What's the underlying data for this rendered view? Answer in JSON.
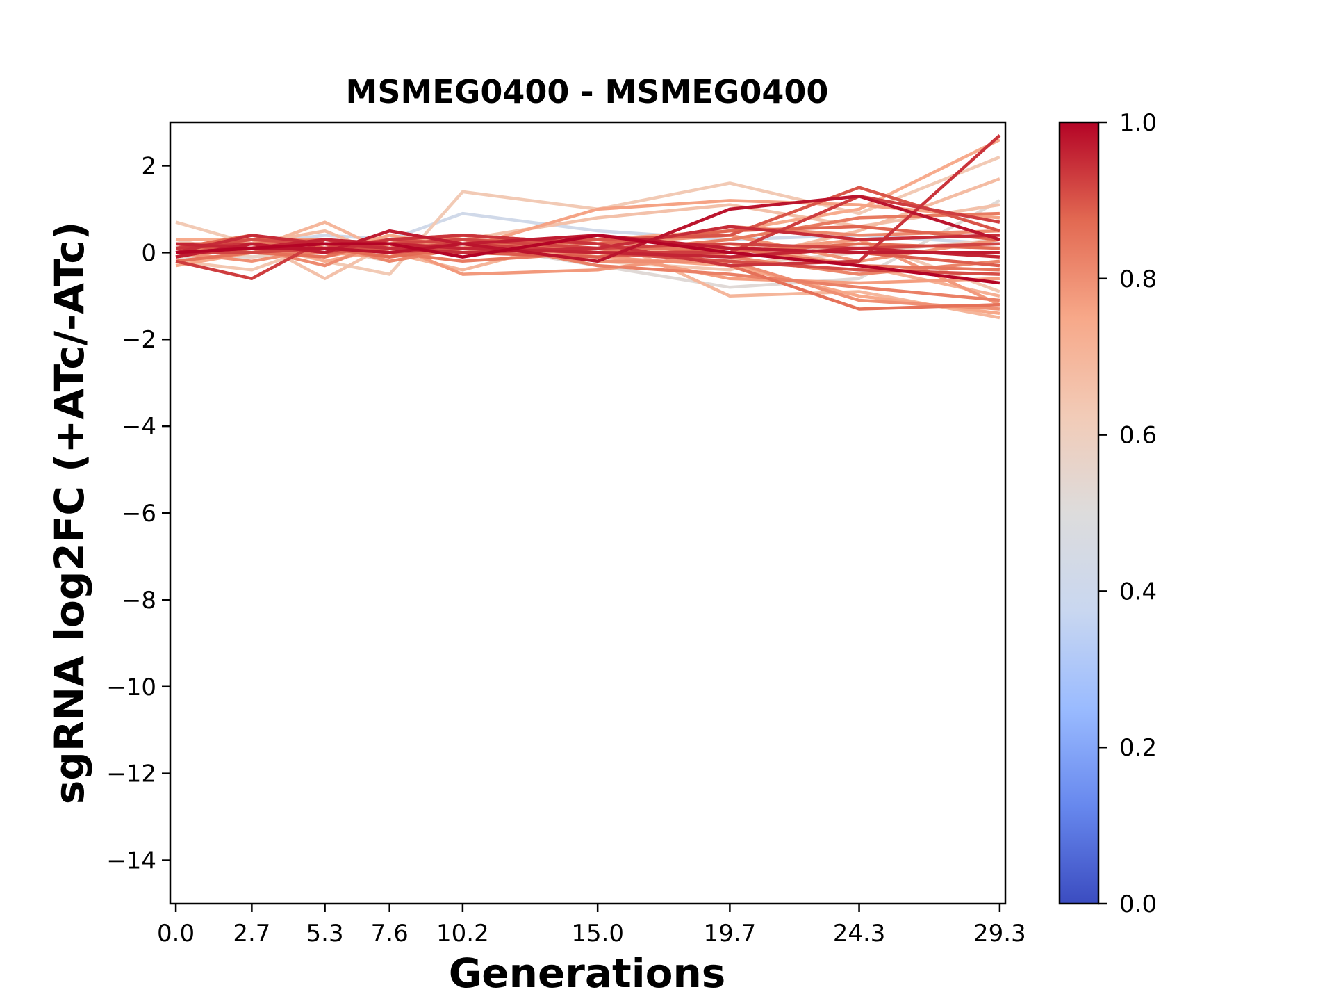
{
  "chart_data": {
    "type": "line",
    "title": "MSMEG0400 - MSMEG0400",
    "xlabel": "Generations",
    "ylabel": "sgRNA log2FC (+ATc/-ATc)",
    "x": [
      0.0,
      2.7,
      5.3,
      7.6,
      10.2,
      15.0,
      19.7,
      24.3,
      29.3
    ],
    "x_tick_labels": [
      "0.0",
      "2.7",
      "5.3",
      "7.6",
      "10.2",
      "15.0",
      "19.7",
      "24.3",
      "29.3"
    ],
    "xlim": [
      -0.2,
      29.5
    ],
    "ylim": [
      -15,
      3
    ],
    "y_ticks": [
      2,
      0,
      -2,
      -4,
      -6,
      -8,
      -10,
      -12,
      -14
    ],
    "y_tick_labels": [
      "2",
      "0",
      "−2",
      "−4",
      "−6",
      "−8",
      "−10",
      "−12",
      "−14"
    ],
    "colorbar": {
      "colormap": "coolwarm",
      "range": [
        0.0,
        1.0
      ],
      "ticks": [
        0.0,
        0.2,
        0.4,
        0.6,
        0.8,
        1.0
      ],
      "tick_labels": [
        "0.0",
        "0.2",
        "0.4",
        "0.6",
        "0.8",
        "1.0"
      ],
      "stops": [
        "#3b4cc0",
        "#6788ee",
        "#9abbff",
        "#c9d7f0",
        "#dddcdc",
        "#f2cbb7",
        "#f7a889",
        "#e26952",
        "#b40426"
      ]
    },
    "series": [
      {
        "c": 0.42,
        "values": [
          0.1,
          0.2,
          0.4,
          0.3,
          0.9,
          0.5,
          0.3,
          0.4,
          0.2
        ]
      },
      {
        "c": 0.52,
        "values": [
          -0.1,
          -0.1,
          0.0,
          0.1,
          0.2,
          -0.3,
          -0.8,
          -0.6,
          1.2
        ]
      },
      {
        "c": 0.58,
        "values": [
          0.3,
          -0.1,
          0.1,
          -0.2,
          0.1,
          0.1,
          -0.3,
          0.0,
          0.3
        ]
      },
      {
        "c": 0.63,
        "values": [
          0.7,
          0.2,
          -0.2,
          -0.5,
          1.4,
          1.0,
          1.6,
          0.9,
          2.2
        ]
      },
      {
        "c": 0.64,
        "values": [
          -0.2,
          -0.4,
          0.2,
          0.0,
          0.2,
          -0.2,
          -0.4,
          0.3,
          -0.9
        ]
      },
      {
        "c": 0.66,
        "values": [
          0.0,
          0.3,
          -0.6,
          0.2,
          0.3,
          0.8,
          1.1,
          0.6,
          1.1
        ]
      },
      {
        "c": 0.68,
        "values": [
          0.2,
          0.2,
          0.5,
          -0.1,
          0.2,
          0.0,
          -0.2,
          0.5,
          1.7
        ]
      },
      {
        "c": 0.7,
        "values": [
          -0.1,
          0.1,
          0.7,
          0.0,
          -0.4,
          0.4,
          -1.0,
          -0.9,
          -1.5
        ]
      },
      {
        "c": 0.72,
        "values": [
          0.1,
          0.0,
          0.1,
          0.3,
          0.3,
          -0.1,
          0.2,
          -0.3,
          -1.0
        ]
      },
      {
        "c": 0.74,
        "values": [
          0.3,
          0.3,
          -0.2,
          0.1,
          0.0,
          0.3,
          0.5,
          1.0,
          2.6
        ]
      },
      {
        "c": 0.75,
        "values": [
          -0.3,
          0.0,
          0.0,
          0.4,
          0.1,
          -0.1,
          -0.3,
          -1.0,
          -1.4
        ]
      },
      {
        "c": 0.76,
        "values": [
          0.0,
          0.2,
          0.2,
          0.2,
          0.1,
          1.0,
          1.2,
          1.1,
          0.8
        ]
      },
      {
        "c": 0.77,
        "values": [
          0.2,
          0.1,
          0.0,
          -0.1,
          0.3,
          0.0,
          -0.6,
          -0.7,
          -0.6
        ]
      },
      {
        "c": 0.78,
        "values": [
          -0.2,
          0.0,
          -0.1,
          0.2,
          -0.5,
          -0.4,
          0.0,
          0.3,
          -1.2
        ]
      },
      {
        "c": 0.79,
        "values": [
          0.1,
          0.3,
          0.3,
          0.0,
          0.4,
          0.2,
          0.4,
          -0.2,
          0.3
        ]
      },
      {
        "c": 0.8,
        "values": [
          0.0,
          -0.2,
          0.1,
          0.1,
          0.2,
          -0.2,
          -0.2,
          -1.1,
          -1.3
        ]
      },
      {
        "c": 0.81,
        "values": [
          0.2,
          0.1,
          -0.3,
          0.3,
          0.0,
          0.1,
          0.6,
          0.4,
          0.5
        ]
      },
      {
        "c": 0.82,
        "values": [
          -0.1,
          0.2,
          0.2,
          -0.2,
          0.1,
          0.3,
          -0.1,
          -0.5,
          -0.2
        ]
      },
      {
        "c": 0.83,
        "values": [
          0.1,
          0.0,
          0.0,
          0.2,
          0.3,
          -0.3,
          -0.5,
          -0.8,
          -1.1
        ]
      },
      {
        "c": 0.84,
        "values": [
          0.0,
          0.1,
          0.1,
          0.0,
          -0.2,
          0.0,
          0.3,
          0.8,
          0.9
        ]
      },
      {
        "c": 0.85,
        "values": [
          0.2,
          0.2,
          0.3,
          0.1,
          0.2,
          0.1,
          0.1,
          -0.3,
          -0.4
        ]
      },
      {
        "c": 0.86,
        "values": [
          -0.2,
          0.0,
          -0.1,
          0.3,
          0.4,
          0.2,
          -0.3,
          -1.3,
          -1.2
        ]
      },
      {
        "c": 0.87,
        "values": [
          0.1,
          0.4,
          0.1,
          -0.1,
          0.1,
          0.0,
          0.0,
          0.2,
          0.1
        ]
      },
      {
        "c": 0.88,
        "values": [
          0.0,
          0.1,
          0.2,
          0.2,
          0.3,
          0.2,
          0.5,
          0.6,
          0.3
        ]
      },
      {
        "c": 0.89,
        "values": [
          -0.1,
          0.2,
          0.0,
          0.1,
          0.0,
          -0.1,
          0.1,
          0.0,
          -0.3
        ]
      },
      {
        "c": 0.9,
        "values": [
          0.2,
          0.0,
          0.1,
          0.3,
          0.2,
          0.3,
          0.4,
          1.5,
          0.5
        ]
      },
      {
        "c": 0.91,
        "values": [
          0.1,
          0.3,
          0.2,
          0.0,
          0.1,
          0.0,
          -0.2,
          -0.4,
          -0.5
        ]
      },
      {
        "c": 0.92,
        "values": [
          0.0,
          0.0,
          0.1,
          0.2,
          0.3,
          0.1,
          0.2,
          0.1,
          0.2
        ]
      },
      {
        "c": 0.93,
        "values": [
          -0.2,
          -0.6,
          0.3,
          0.1,
          0.2,
          0.0,
          0.0,
          1.3,
          0.7
        ]
      },
      {
        "c": 0.94,
        "values": [
          0.1,
          0.2,
          0.0,
          0.3,
          0.4,
          0.2,
          -0.3,
          -0.2,
          2.7
        ]
      },
      {
        "c": 0.95,
        "values": [
          0.0,
          0.4,
          0.2,
          0.1,
          0.0,
          0.1,
          0.6,
          0.3,
          0.4
        ]
      },
      {
        "c": 0.96,
        "values": [
          0.2,
          0.1,
          0.3,
          0.2,
          0.1,
          0.0,
          -0.1,
          0.1,
          -0.1
        ]
      },
      {
        "c": 0.97,
        "values": [
          -0.1,
          0.2,
          0.0,
          0.5,
          0.2,
          0.4,
          0.1,
          0.0,
          0.0
        ]
      },
      {
        "c": 0.98,
        "values": [
          0.0,
          0.1,
          0.1,
          0.0,
          0.2,
          -0.2,
          1.0,
          1.3,
          0.3
        ]
      },
      {
        "c": 1.0,
        "values": [
          0.0,
          0.1,
          0.2,
          0.2,
          -0.1,
          0.4,
          0.0,
          -0.3,
          -0.7
        ]
      }
    ]
  }
}
